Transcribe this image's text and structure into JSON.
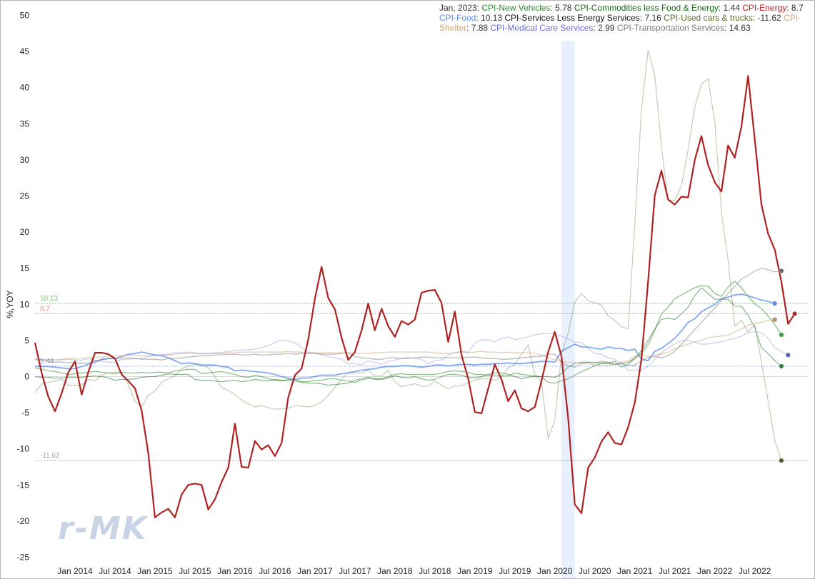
{
  "legend": {
    "date": "Jan, 2023",
    "entries": [
      {
        "label": "CPI-New Vehicles",
        "value": "5.78",
        "color": "#2e8b2e"
      },
      {
        "label": "CPI-Commodities less Food & Energy",
        "value": "1.44",
        "color": "#1a6b1a"
      },
      {
        "label": "CPI-Energy",
        "value": "8.7",
        "color": "#b22222"
      },
      {
        "label": "CPI-Food",
        "value": "10.13",
        "color": "#5b8def"
      },
      {
        "label": "CPI-Services Less Energy Services",
        "value": "7.16",
        "color": "#111111"
      },
      {
        "label": "CPI-Used cars & trucks",
        "value": "-11.62",
        "color": "#5a6e2a"
      },
      {
        "label": "CPI-Shelter",
        "value": "7.88",
        "color": "#d2a679"
      },
      {
        "label": "CPI-Medical Care Services",
        "value": "2.99",
        "color": "#6a6ade"
      },
      {
        "label": "CPI-Transportation Services",
        "value": "14.63",
        "color": "#7a7a7a"
      }
    ]
  },
  "watermark": "r-MK",
  "chart_data": {
    "type": "line",
    "ylabel": "%,YOY",
    "ylim": [
      -26,
      52
    ],
    "yticks": [
      50,
      45,
      40,
      35,
      30,
      25,
      20,
      15,
      10,
      5,
      0,
      -5,
      -10,
      -15,
      -20,
      -25
    ],
    "xticks": [
      "Jan 2014",
      "Jul 2014",
      "Jan 2015",
      "Jul 2015",
      "Jan 2016",
      "Jul 2016",
      "Jan 2017",
      "Jul 2017",
      "Jan 2018",
      "Jul 2018",
      "Jan 2019",
      "Jul 2019",
      "Jan 2020",
      "Jul 2020",
      "Jan 2021",
      "Jul 2021",
      "Jan 2022",
      "Jul 2022"
    ],
    "start_month": "2013-07",
    "recession_band": [
      "2020-02",
      "2020-04"
    ],
    "reference_lines": [
      {
        "value": 10.13,
        "label": "10.13",
        "color": "#7cc27c"
      },
      {
        "value": 8.7,
        "label": "8.7",
        "color": "#e08a8a"
      },
      {
        "value": 1.44,
        "label": "1.44",
        "color": "#8fa8ef"
      },
      {
        "value": -11.62,
        "label": "-11.62",
        "color": "#a0a0a0"
      }
    ],
    "series": [
      {
        "name": "CPI-Energy",
        "color": "#b22222",
        "width": 2.2,
        "opacity": 1,
        "marker": "#b22222",
        "values": [
          4.7,
          0.5,
          -2.8,
          -4.8,
          -2.3,
          0.6,
          2.1,
          -2.5,
          0.6,
          3.3,
          3.3,
          3.1,
          2.5,
          0.3,
          -0.6,
          -1.6,
          -4.7,
          -10.6,
          -19.5,
          -18.8,
          -18.3,
          -19.5,
          -16.3,
          -15.0,
          -14.8,
          -15.0,
          -18.4,
          -17.0,
          -14.6,
          -12.6,
          -6.5,
          -12.5,
          -12.6,
          -8.9,
          -10.1,
          -9.5,
          -11.0,
          -9.2,
          -2.9,
          0.2,
          1.1,
          5.1,
          10.8,
          15.2,
          10.9,
          9.3,
          5.4,
          2.3,
          3.4,
          6.4,
          10.1,
          6.4,
          9.4,
          7.0,
          5.5,
          7.7,
          7.2,
          7.9,
          11.6,
          11.9,
          12.0,
          10.2,
          4.8,
          9.0,
          3.0,
          -0.3,
          -4.9,
          -5.1,
          -1.7,
          1.7,
          -0.4,
          -3.4,
          -1.9,
          -4.4,
          -4.8,
          -4.2,
          -0.6,
          3.4,
          6.2,
          2.8,
          -5.7,
          -17.7,
          -18.9,
          -12.6,
          -11.2,
          -9.0,
          -7.7,
          -9.2,
          -9.4,
          -7.0,
          -3.6,
          2.4,
          13.2,
          25.1,
          28.5,
          24.5,
          23.8,
          24.9,
          24.8,
          30.0,
          33.3,
          29.3,
          26.9,
          25.6,
          32.0,
          30.3,
          34.6,
          41.6,
          32.9,
          23.8,
          19.8,
          17.6,
          13.1,
          7.3,
          8.7
        ]
      },
      {
        "name": "CPI-Food",
        "color": "#5b8def",
        "width": 1.8,
        "opacity": 0.75,
        "marker": "#5b8def",
        "values": [
          1.4,
          1.4,
          1.4,
          1.3,
          1.2,
          1.1,
          1.1,
          1.4,
          1.7,
          2.0,
          2.4,
          2.5,
          2.5,
          2.8,
          3.1,
          3.2,
          3.4,
          3.2,
          3.0,
          2.9,
          2.6,
          2.2,
          1.8,
          1.9,
          1.8,
          1.6,
          1.6,
          1.6,
          1.4,
          1.3,
          0.8,
          0.9,
          0.8,
          0.7,
          0.6,
          0.5,
          0.3,
          0.0,
          -0.2,
          -0.4,
          -0.2,
          -0.2,
          0.0,
          0.2,
          0.2,
          0.2,
          0.4,
          0.5,
          0.7,
          0.9,
          1.0,
          1.1,
          1.3,
          1.4,
          1.4,
          1.5,
          1.5,
          1.4,
          1.3,
          1.4,
          1.6,
          1.6,
          1.5,
          1.6,
          1.7,
          1.7,
          1.6,
          1.7,
          1.7,
          1.8,
          1.8,
          1.9,
          1.8,
          1.8,
          1.9,
          2.0,
          2.1,
          2.1,
          2.0,
          3.5,
          4.0,
          4.5,
          4.1,
          4.1,
          3.9,
          3.8,
          4.1,
          3.9,
          3.9,
          3.6,
          3.8,
          2.4,
          2.2,
          3.5,
          3.9,
          4.6,
          5.3,
          6.3,
          7.5,
          8.0,
          9.0,
          9.5,
          10.0,
          10.8,
          11.0,
          11.3,
          11.4,
          11.2,
          10.9,
          10.6,
          10.4,
          10.13
        ]
      },
      {
        "name": "CPI-New Vehicles",
        "color": "#2e8b2e",
        "width": 1.3,
        "opacity": 0.55,
        "marker": "#3a9a3a",
        "values": [
          1.2,
          1.0,
          0.8,
          0.7,
          0.5,
          0.3,
          0.4,
          0.5,
          0.6,
          0.7,
          0.6,
          0.5,
          0.4,
          0.6,
          0.5,
          0.5,
          0.6,
          0.5,
          0.6,
          0.6,
          0.5,
          0.8,
          0.9,
          1.0,
          1.0,
          0.4,
          0.5,
          0.6,
          0.7,
          0.5,
          0.3,
          0.0,
          -0.1,
          0.2,
          0.0,
          -0.3,
          -0.5,
          -0.6,
          -0.4,
          -0.4,
          -0.7,
          -0.7,
          -0.5,
          -0.5,
          -0.3,
          -0.3,
          -0.5,
          -0.6,
          -0.8,
          -0.5,
          -0.2,
          -0.3,
          -0.3,
          0.0,
          0.3,
          0.4,
          0.3,
          0.3,
          0.3,
          0.3,
          0.3,
          0.5,
          0.7,
          0.8,
          0.7,
          0.6,
          0.3,
          0.3,
          0.2,
          0.2,
          0.1,
          0.1,
          0.5,
          0.3,
          0.2,
          0.0,
          0.0,
          0.0,
          -0.1,
          0.4,
          1.3,
          1.8,
          2.0,
          2.0,
          1.9,
          1.9,
          1.9,
          2.1,
          1.3,
          1.7,
          2.5,
          3.2,
          4.4,
          6.4,
          8.7,
          9.6,
          10.8,
          11.3,
          11.8,
          12.3,
          12.6,
          12.5,
          11.5,
          11.1,
          12.4,
          13.2,
          12.3,
          11.1,
          10.1,
          9.4,
          8.4,
          7.2,
          5.78
        ]
      },
      {
        "name": "CPI-Commodities less Food & Energy",
        "color": "#1a6b1a",
        "width": 1.2,
        "opacity": 0.5,
        "marker": "#2e7d32",
        "values": [
          0.0,
          -0.1,
          -0.1,
          -0.2,
          -0.2,
          -0.1,
          -0.1,
          -0.1,
          0.0,
          0.1,
          0.0,
          -0.2,
          -0.5,
          -0.4,
          -0.4,
          -0.3,
          -0.1,
          0.0,
          0.0,
          0.2,
          0.4,
          0.3,
          0.3,
          0.3,
          -0.4,
          -0.5,
          -0.5,
          -0.6,
          -0.7,
          -0.6,
          -0.5,
          -0.7,
          -0.6,
          -0.4,
          -0.5,
          -0.6,
          -0.4,
          -0.5,
          -0.5,
          -0.6,
          -0.8,
          -0.9,
          -0.9,
          -1.0,
          -1.2,
          -1.1,
          -1.0,
          -0.9,
          -0.5,
          -0.3,
          -0.1,
          -0.4,
          -0.4,
          -0.2,
          0.1,
          -0.1,
          -0.2,
          0.0,
          -0.3,
          -0.5,
          -0.4,
          0.0,
          0.3,
          0.3,
          0.2,
          -0.1,
          -0.2,
          0.0,
          0.3,
          0.5,
          0.5,
          0.3,
          0.0,
          -0.3,
          -0.1,
          0.1,
          0.0,
          -0.8,
          -0.9,
          -0.6,
          -0.3,
          0.2,
          0.7,
          1.1,
          1.5,
          1.8,
          1.8,
          1.7,
          1.8,
          2.0,
          2.5,
          3.6,
          5.0,
          6.6,
          7.9,
          8.1,
          7.9,
          8.7,
          9.6,
          11.2,
          12.3,
          11.5,
          10.7,
          10.7,
          10.7,
          9.8,
          9.7,
          8.5,
          6.8,
          4.0,
          3.2,
          2.2,
          1.44
        ]
      },
      {
        "name": "CPI-Used cars & trucks",
        "color": "#5a6e2a",
        "width": 1.2,
        "opacity": 0.35,
        "marker": "#4a5a22",
        "values": [
          -2.2,
          -1.0,
          -0.8,
          -0.6,
          -0.4,
          -1.2,
          -1.2,
          -1.2,
          -0.4,
          -0.6,
          0.2,
          0.5,
          0.6,
          0.6,
          -1.1,
          -3.4,
          -4.2,
          -2.6,
          -2.0,
          -0.8,
          -0.3,
          0.1,
          1.1,
          1.5,
          1.7,
          1.5,
          1.3,
          0.0,
          -1.5,
          -1.9,
          -2.5,
          -3.2,
          -3.8,
          -4.2,
          -4.0,
          -4.3,
          -4.5,
          -4.5,
          -4.4,
          -4.0,
          -4.1,
          -4.2,
          -4.0,
          -3.5,
          -2.6,
          -1.5,
          -0.4,
          0.6,
          0.5,
          0.5,
          0.9,
          0.1,
          0.1,
          0.9,
          -0.7,
          -1.4,
          -1.2,
          -1.0,
          -1.3,
          -1.3,
          -0.6,
          -1.2,
          -1.7,
          -1.3,
          -1.3,
          -0.8,
          -0.5,
          -0.3,
          -0.3,
          -0.5,
          0.0,
          1.2,
          1.7,
          3.1,
          4.4,
          0.2,
          -0.7,
          -8.6,
          -6.0,
          3.1,
          6.0,
          10.3,
          11.5,
          10.5,
          10.2,
          9.9,
          8.4,
          7.8,
          6.9,
          6.6,
          21.0,
          36.9,
          45.2,
          41.7,
          31.9,
          24.4,
          24.4,
          26.4,
          31.4,
          37.3,
          40.5,
          41.2,
          35.3,
          22.7,
          16.1,
          7.0,
          7.8,
          6.2,
          7.2,
          2.0,
          -3.3,
          -8.8,
          -11.62
        ]
      },
      {
        "name": "CPI-Shelter",
        "color": "#d2a679",
        "width": 1.2,
        "opacity": 0.6,
        "marker": "#c09060",
        "values": [
          2.2,
          2.3,
          2.3,
          2.3,
          2.4,
          2.5,
          2.5,
          2.6,
          2.6,
          2.7,
          2.7,
          2.8,
          2.9,
          2.9,
          2.9,
          3.0,
          2.9,
          2.9,
          2.9,
          3.0,
          3.0,
          3.1,
          3.2,
          3.2,
          3.2,
          3.2,
          3.2,
          3.2,
          3.2,
          3.3,
          3.3,
          3.4,
          3.4,
          3.4,
          3.4,
          3.4,
          3.4,
          3.4,
          3.5,
          3.4,
          3.4,
          3.3,
          3.3,
          3.3,
          3.3,
          3.3,
          3.3,
          3.3,
          3.2,
          3.2,
          3.2,
          3.3,
          3.3,
          3.4,
          3.4,
          3.4,
          3.4,
          3.4,
          3.4,
          3.4,
          3.3,
          3.2,
          3.2,
          3.3,
          3.4,
          3.3,
          3.4,
          3.5,
          3.4,
          3.4,
          3.3,
          3.4,
          3.3,
          3.3,
          3.3,
          3.2,
          3.0,
          2.6,
          2.3,
          2.1,
          2.0,
          2.0,
          1.8,
          1.8,
          1.6,
          1.5,
          1.6,
          1.7,
          2.0,
          2.2,
          2.8,
          2.9,
          2.8,
          3.0,
          3.1,
          3.4,
          3.8,
          4.2,
          4.5,
          4.8,
          5.0,
          5.4,
          5.5,
          5.6,
          5.7,
          6.2,
          6.6,
          7.1,
          7.4,
          7.5,
          7.8,
          7.88
        ]
      },
      {
        "name": "CPI-Medical Care Services",
        "color": "#6a6ade",
        "width": 1.2,
        "opacity": 0.35,
        "marker": "#5a5ad0",
        "values": [
          2.5,
          2.4,
          2.4,
          2.3,
          2.3,
          2.4,
          2.3,
          2.3,
          2.5,
          2.2,
          2.1,
          2.0,
          2.0,
          2.4,
          2.4,
          2.5,
          2.5,
          2.8,
          2.9,
          3.0,
          3.1,
          3.3,
          3.3,
          3.4,
          3.3,
          3.2,
          3.2,
          3.3,
          3.3,
          3.5,
          3.6,
          3.7,
          3.7,
          3.8,
          4.0,
          4.3,
          4.7,
          5.1,
          4.9,
          4.7,
          4.0,
          3.4,
          3.2,
          3.0,
          2.8,
          2.6,
          2.4,
          1.8,
          1.8,
          1.6,
          2.2,
          2.0,
          1.7,
          2.1,
          2.3,
          2.5,
          2.7,
          2.5,
          2.4,
          1.8,
          2.2,
          2.3,
          3.0,
          3.3,
          3.5,
          3.4,
          4.6,
          5.1,
          5.1,
          4.8,
          5.3,
          5.5,
          5.1,
          5.3,
          5.5,
          5.8,
          5.9,
          6.0,
          5.9,
          5.6,
          5.2,
          4.8,
          4.7,
          3.9,
          3.2,
          3.1,
          2.6,
          2.4,
          1.8,
          0.9,
          0.8,
          0.9,
          1.4,
          2.4,
          3.3,
          4.0,
          4.5,
          5.0,
          5.0,
          4.8,
          4.5,
          4.5,
          4.7,
          4.8,
          5.1,
          5.3,
          5.6,
          6.1,
          6.2,
          6.1,
          5.3,
          4.0,
          3.5,
          2.99
        ]
      },
      {
        "name": "CPI-Transportation Services",
        "color": "#7a7a7a",
        "width": 1.3,
        "opacity": 0.5,
        "marker": "#666666",
        "values": [
          2.4,
          2.3,
          2.1,
          2.0,
          2.0,
          1.9,
          1.9,
          1.8,
          1.9,
          2.2,
          2.3,
          2.5,
          2.5,
          2.6,
          2.6,
          2.5,
          2.4,
          2.4,
          2.4,
          2.3,
          2.5,
          2.5,
          2.6,
          2.7,
          2.8,
          2.9,
          2.9,
          3.0,
          3.0,
          3.1,
          3.1,
          3.0,
          3.0,
          3.1,
          3.0,
          3.0,
          3.1,
          3.1,
          3.2,
          3.1,
          3.2,
          3.2,
          3.2,
          3.1,
          3.1,
          3.1,
          3.2,
          3.3,
          2.8,
          2.6,
          2.5,
          2.4,
          2.4,
          2.6,
          2.6,
          2.5,
          2.5,
          2.6,
          2.7,
          2.7,
          2.6,
          2.6,
          2.6,
          2.6,
          2.6,
          2.7,
          2.7,
          2.6,
          2.5,
          2.5,
          2.4,
          2.4,
          2.5,
          2.6,
          2.7,
          2.8,
          2.8,
          3.1,
          3.1,
          2.0,
          1.5,
          1.3,
          1.8,
          2.0,
          1.9,
          2.1,
          2.0,
          1.7,
          1.8,
          1.5,
          1.6,
          2.2,
          2.6,
          2.8,
          2.6,
          2.9,
          3.5,
          4.5,
          5.5,
          6.5,
          7.5,
          8.5,
          9.5,
          10.5,
          11.5,
          12.5,
          13.5,
          14.0,
          14.6,
          15.0,
          14.8,
          14.5,
          14.63
        ]
      }
    ]
  }
}
